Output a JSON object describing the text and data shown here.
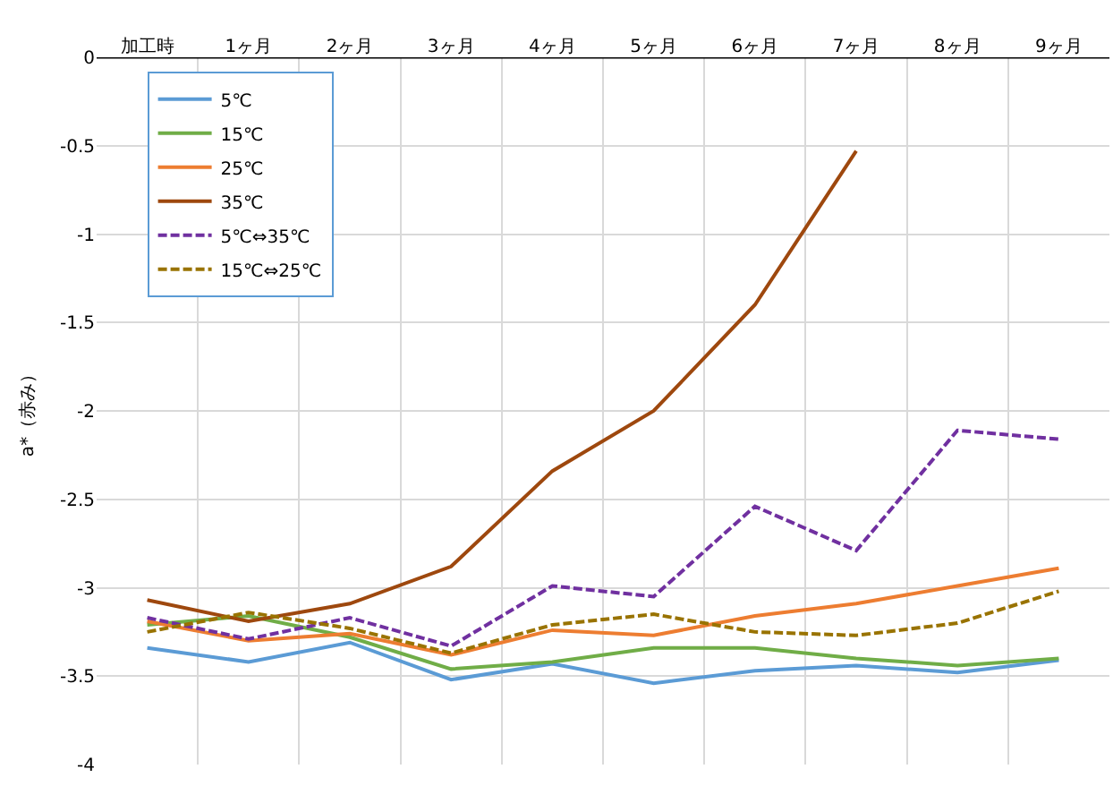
{
  "chart_data": {
    "type": "line",
    "ylabel": "a*（赤み）",
    "categories": [
      "加工時",
      "1ヶ月",
      "2ヶ月",
      "3ヶ月",
      "4ヶ月",
      "5ヶ月",
      "6ヶ月",
      "7ヶ月",
      "8ヶ月",
      "9ヶ月"
    ],
    "series": [
      {
        "name": "5℃",
        "color": "#5b9bd5",
        "line_style": "solid",
        "values": [
          -3.34,
          -3.42,
          -3.31,
          -3.52,
          -3.43,
          -3.54,
          -3.47,
          -3.44,
          -3.48,
          -3.41
        ]
      },
      {
        "name": "15℃",
        "color": "#70ad47",
        "line_style": "solid",
        "values": [
          -3.21,
          -3.16,
          -3.28,
          -3.46,
          -3.42,
          -3.34,
          -3.34,
          -3.4,
          -3.44,
          -3.4
        ]
      },
      {
        "name": "25℃",
        "color": "#ed7d31",
        "line_style": "solid",
        "values": [
          -3.19,
          -3.3,
          -3.26,
          -3.38,
          -3.24,
          -3.27,
          -3.16,
          -3.09,
          -2.99,
          -2.89
        ]
      },
      {
        "name": "35℃",
        "color": "#9e480e",
        "line_style": "solid",
        "values": [
          -3.07,
          -3.19,
          -3.09,
          -2.88,
          -2.34,
          -2.0,
          -1.4,
          -0.53,
          null,
          null
        ]
      },
      {
        "name": "5℃⇔35℃",
        "color": "#7030a0",
        "line_style": "dashed",
        "values": [
          -3.17,
          -3.29,
          -3.17,
          -3.33,
          -2.99,
          -3.05,
          -2.54,
          -2.79,
          -2.11,
          -2.16
        ]
      },
      {
        "name": "15℃⇔25℃",
        "color": "#997300",
        "line_style": "dashed",
        "values": [
          -3.25,
          -3.14,
          -3.23,
          -3.37,
          -3.21,
          -3.15,
          -3.25,
          -3.27,
          -3.2,
          -3.02
        ]
      }
    ],
    "ylim": [
      -4,
      0
    ],
    "yticks": [
      -4,
      -3.5,
      -3,
      -2.5,
      -2,
      -1.5,
      -1,
      -0.5,
      0
    ],
    "grid": true,
    "legend": "top left",
    "marker": "none"
  }
}
